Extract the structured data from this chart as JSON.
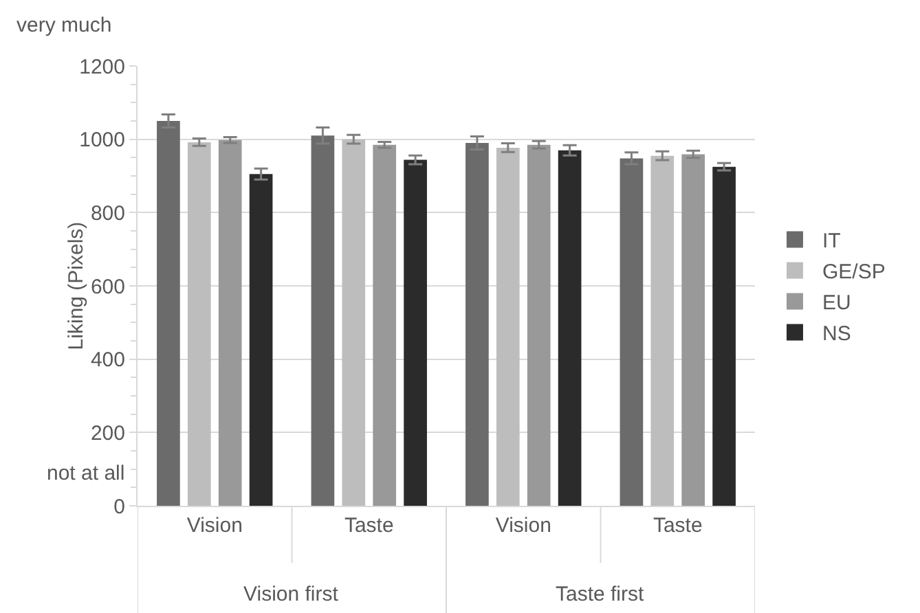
{
  "chart_data": {
    "type": "bar",
    "ylabel": "Liking (Pixels)",
    "categories": [
      "Vision",
      "Taste",
      "Vision",
      "Taste"
    ],
    "series": [
      {
        "name": "IT",
        "color": "#6b6b6b",
        "values": [
          1050,
          1010,
          990,
          948
        ],
        "errors": [
          18,
          22,
          18,
          16
        ]
      },
      {
        "name": "GE/SP",
        "color": "#bdbdbd",
        "values": [
          992,
          1000,
          977,
          955
        ],
        "errors": [
          10,
          12,
          12,
          12
        ]
      },
      {
        "name": "EU",
        "color": "#999999",
        "values": [
          998,
          985,
          985,
          959
        ],
        "errors": [
          8,
          8,
          10,
          10
        ]
      },
      {
        "name": "NS",
        "color": "#2b2b2b",
        "values": [
          905,
          944,
          970,
          925
        ],
        "errors": [
          15,
          12,
          14,
          10
        ]
      }
    ],
    "ylim": [
      0,
      1200
    ],
    "yticks": [
      0,
      200,
      400,
      600,
      800,
      1000,
      1200
    ],
    "grid": "y",
    "legend": "right",
    "annotations": [
      "very much",
      "not at all",
      "Vision first",
      "Taste first"
    ]
  }
}
